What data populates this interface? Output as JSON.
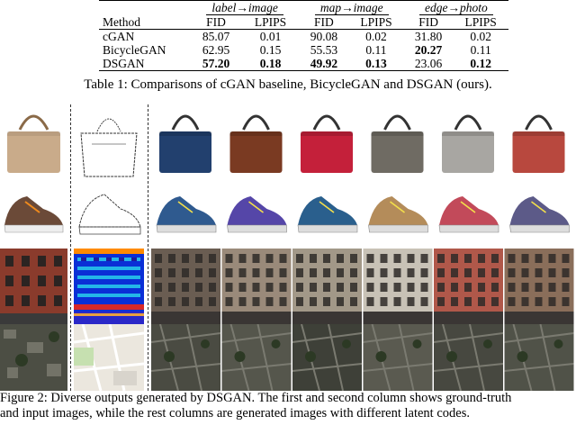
{
  "table": {
    "header_method": "Method",
    "groups": [
      "label→image",
      "map→image",
      "edge→photo"
    ],
    "metrics": [
      "FID",
      "LPIPS"
    ],
    "rows": [
      {
        "method": "cGAN",
        "values": [
          "85.07",
          "0.01",
          "90.08",
          "0.02",
          "31.80",
          "0.02"
        ],
        "bold": [
          false,
          false,
          false,
          false,
          false,
          false
        ]
      },
      {
        "method": "BicycleGAN",
        "values": [
          "62.95",
          "0.15",
          "55.53",
          "0.11",
          "20.27",
          "0.11"
        ],
        "bold": [
          false,
          false,
          false,
          false,
          true,
          false
        ]
      },
      {
        "method": "DSGAN",
        "values": [
          "57.20",
          "0.18",
          "49.92",
          "0.13",
          "23.06",
          "0.12"
        ],
        "bold": [
          true,
          true,
          true,
          true,
          false,
          true
        ]
      }
    ],
    "caption": "Table 1: Comparisons of cGAN baseline, BicycleGAN and DSGAN (ours)."
  },
  "figure": {
    "caption_line1": "Figure 2: Diverse outputs generated by DSGAN. The first and second column shows ground-truth",
    "caption_line2": "and input images, while the rest columns are generated images with different latent codes.",
    "bag_colors": [
      "#c9ab8a",
      "#22406e",
      "#7a3a22",
      "#c4203a",
      "#6f6b63",
      "#a8a6a2",
      "#b8483e"
    ],
    "shoe_colors": [
      "#6b4a38",
      "#2f5a8f",
      "#5546a8",
      "#2a5f8d",
      "#b48c5a",
      "#c24a5a",
      "#5c5a88"
    ]
  }
}
